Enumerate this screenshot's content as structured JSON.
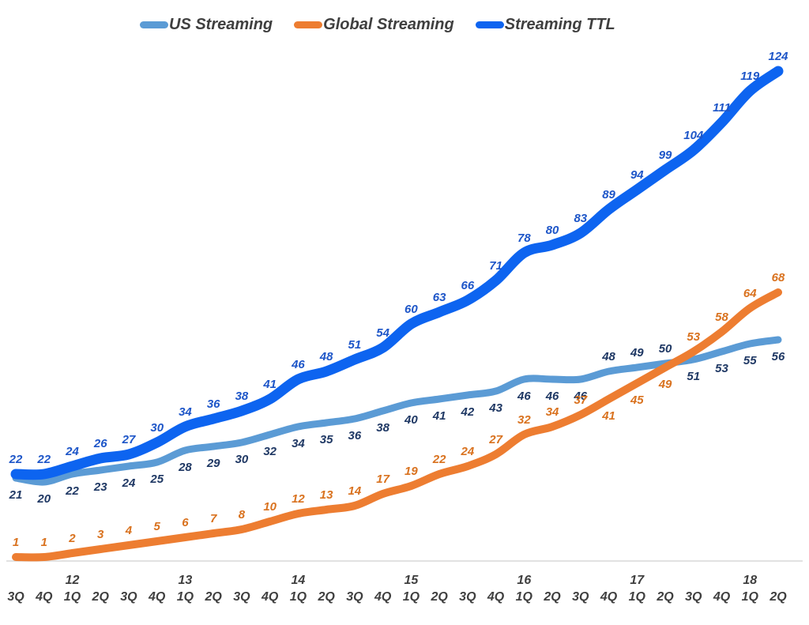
{
  "legend": {
    "items": [
      {
        "label": "US Streaming",
        "color": "#5B9BD5"
      },
      {
        "label": "Global Streaming",
        "color": "#ED7D31"
      },
      {
        "label": "Streaming TTL",
        "color": "#0D64F0"
      }
    ]
  },
  "chart_data": {
    "type": "line",
    "title": "",
    "xlabel": "",
    "ylabel": "",
    "ylim": [
      0,
      140
    ],
    "grid": false,
    "legend_position": "top",
    "x_quarter_labels": [
      "3Q",
      "4Q",
      "1Q",
      "2Q",
      "3Q",
      "4Q",
      "1Q",
      "2Q",
      "3Q",
      "4Q",
      "1Q",
      "2Q",
      "3Q",
      "4Q",
      "1Q",
      "2Q",
      "3Q",
      "4Q",
      "1Q",
      "2Q",
      "3Q",
      "4Q",
      "1Q",
      "2Q",
      "3Q",
      "4Q",
      "1Q",
      "2Q"
    ],
    "year_labels": [
      {
        "text": "12",
        "index": 2
      },
      {
        "text": "13",
        "index": 6
      },
      {
        "text": "14",
        "index": 10
      },
      {
        "text": "15",
        "index": 14
      },
      {
        "text": "16",
        "index": 18
      },
      {
        "text": "17",
        "index": 22
      },
      {
        "text": "18",
        "index": 26
      }
    ],
    "series": [
      {
        "name": "US Streaming",
        "color": "#5B9BD5",
        "label_color": "#1F3864",
        "label_side": "below",
        "label_above_indices": [
          21,
          22,
          23
        ],
        "values": [
          21,
          20,
          22,
          23,
          24,
          25,
          28,
          29,
          30,
          32,
          34,
          35,
          36,
          38,
          40,
          41,
          42,
          43,
          46,
          46,
          46,
          48,
          49,
          50,
          51,
          53,
          55,
          56
        ]
      },
      {
        "name": "Global Streaming",
        "color": "#ED7D31",
        "label_color": "#D9721F",
        "label_side": "above",
        "label_below_indices": [
          21,
          22,
          23
        ],
        "values": [
          1,
          1,
          2,
          3,
          4,
          5,
          6,
          7,
          8,
          10,
          12,
          13,
          14,
          17,
          19,
          22,
          24,
          27,
          32,
          34,
          37,
          41,
          45,
          49,
          53,
          58,
          64,
          68
        ]
      },
      {
        "name": "Streaming TTL",
        "color": "#0D64F0",
        "label_color": "#1E56C8",
        "label_side": "above",
        "values": [
          22,
          22,
          24,
          26,
          27,
          30,
          34,
          36,
          38,
          41,
          46,
          48,
          51,
          54,
          60,
          63,
          66,
          71,
          78,
          80,
          83,
          89,
          94,
          99,
          104,
          111,
          119,
          124
        ]
      }
    ],
    "axis_line_color": "#D9D9D9",
    "axis_text_color": "#3F3F3F"
  }
}
